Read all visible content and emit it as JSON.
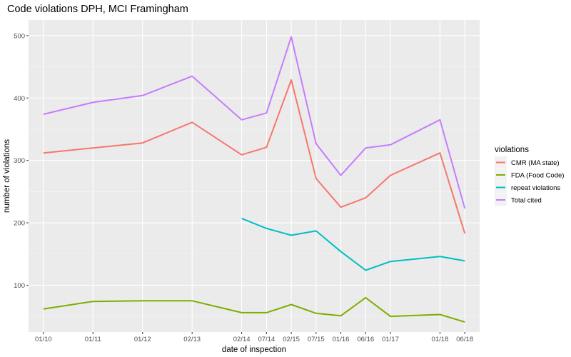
{
  "chart_data": {
    "type": "line",
    "title": "Code violations DPH,  MCI Framingham",
    "xlabel": "date of inspection",
    "ylabel": "number of violations",
    "x": [
      2010.0,
      2011.0,
      2012.0,
      2013.0,
      2014.0,
      2014.5,
      2015.0,
      2015.5,
      2016.0,
      2016.5,
      2017.0,
      2018.0,
      2018.5
    ],
    "xtick_values": [
      2010.0,
      2011.0,
      2012.0,
      2013.0,
      2014.0,
      2014.5,
      2015.0,
      2015.5,
      2016.0,
      2016.5,
      2017.0,
      2018.0,
      2018.5
    ],
    "xtick_labels": [
      "01/10",
      "01/11",
      "01/12",
      "02/13",
      "02/14",
      "07/14",
      "02/15",
      "07/15",
      "01/16",
      "06/16",
      "01/17",
      "01/18",
      "06/18"
    ],
    "ylim": [
      25,
      525
    ],
    "yticks": [
      100,
      200,
      300,
      400,
      500
    ],
    "grid": true,
    "legend": {
      "title": "violations",
      "position": "right"
    },
    "series": [
      {
        "name": "CMR (MA state)",
        "color": "#F8766D",
        "values": [
          312,
          320,
          328,
          361,
          309,
          321,
          429,
          271,
          225,
          240,
          276,
          312,
          183
        ]
      },
      {
        "name": "FDA (Food Code)",
        "color": "#7CAE00",
        "values": [
          62,
          74,
          75,
          75,
          56,
          56,
          69,
          55,
          51,
          80,
          50,
          53,
          41
        ]
      },
      {
        "name": "repeat violations",
        "color": "#00BFC4",
        "values": [
          null,
          null,
          null,
          null,
          207,
          191,
          180,
          187,
          154,
          124,
          138,
          146,
          139
        ]
      },
      {
        "name": "Total cited",
        "color": "#C77CFF",
        "values": [
          374,
          393,
          404,
          435,
          365,
          376,
          498,
          327,
          276,
          320,
          325,
          365,
          223
        ]
      }
    ]
  }
}
